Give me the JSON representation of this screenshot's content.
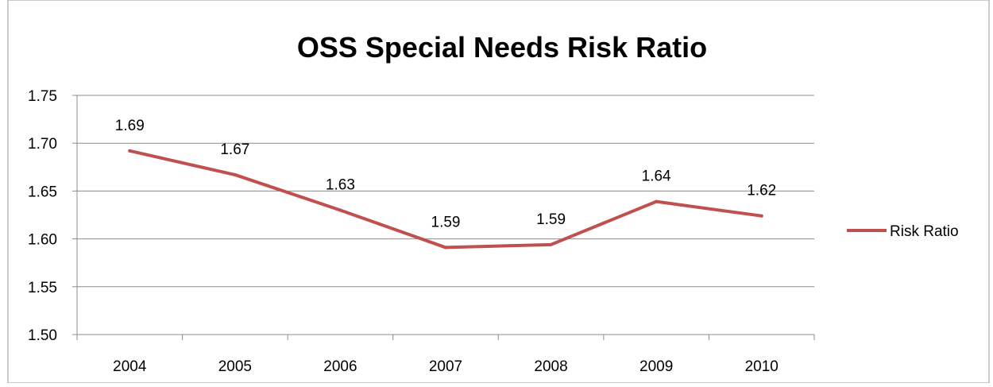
{
  "chart_data": {
    "type": "line",
    "title": "OSS Special Needs Risk Ratio",
    "xlabel": "",
    "ylabel": "",
    "categories": [
      "2004",
      "2005",
      "2006",
      "2007",
      "2008",
      "2009",
      "2010"
    ],
    "series": [
      {
        "name": "Risk Ratio",
        "values": [
          1.692,
          1.667,
          1.63,
          1.591,
          1.594,
          1.639,
          1.624
        ],
        "labels": [
          "1.69",
          "1.67",
          "1.63",
          "1.59",
          "1.59",
          "1.64",
          "1.62"
        ],
        "color": "#c0504d"
      }
    ],
    "ylim": [
      1.5,
      1.75
    ],
    "yticks": [
      "1.50",
      "1.55",
      "1.60",
      "1.65",
      "1.70",
      "1.75"
    ],
    "grid": true,
    "legend": "right"
  }
}
